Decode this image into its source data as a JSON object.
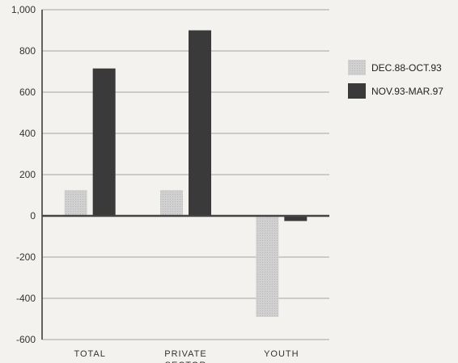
{
  "chart_data": {
    "type": "bar",
    "categories": [
      "TOTAL",
      "PRIVATE SECTOR",
      "YOUTH"
    ],
    "category_lines": [
      [
        "TOTAL"
      ],
      [
        "PRIVATE",
        "SECTOR"
      ],
      [
        "YOUTH"
      ]
    ],
    "series": [
      {
        "name": "DEC.88-OCT.93",
        "values": [
          125,
          125,
          -490
        ],
        "color": "#c8c8c8"
      },
      {
        "name": "NOV.93-MAR.97",
        "values": [
          715,
          900,
          -25
        ],
        "color": "#3a3a3a"
      }
    ],
    "ylim": [
      -600,
      1000
    ],
    "yticks": [
      "1,000",
      "800",
      "600",
      "400",
      "200",
      "0",
      "-200",
      "-400",
      "-600"
    ],
    "ytick_values": [
      1000,
      800,
      600,
      400,
      200,
      0,
      -200,
      -400,
      -600
    ],
    "grid": true,
    "legend_position": "right",
    "title": "",
    "xlabel": "",
    "ylabel": ""
  }
}
